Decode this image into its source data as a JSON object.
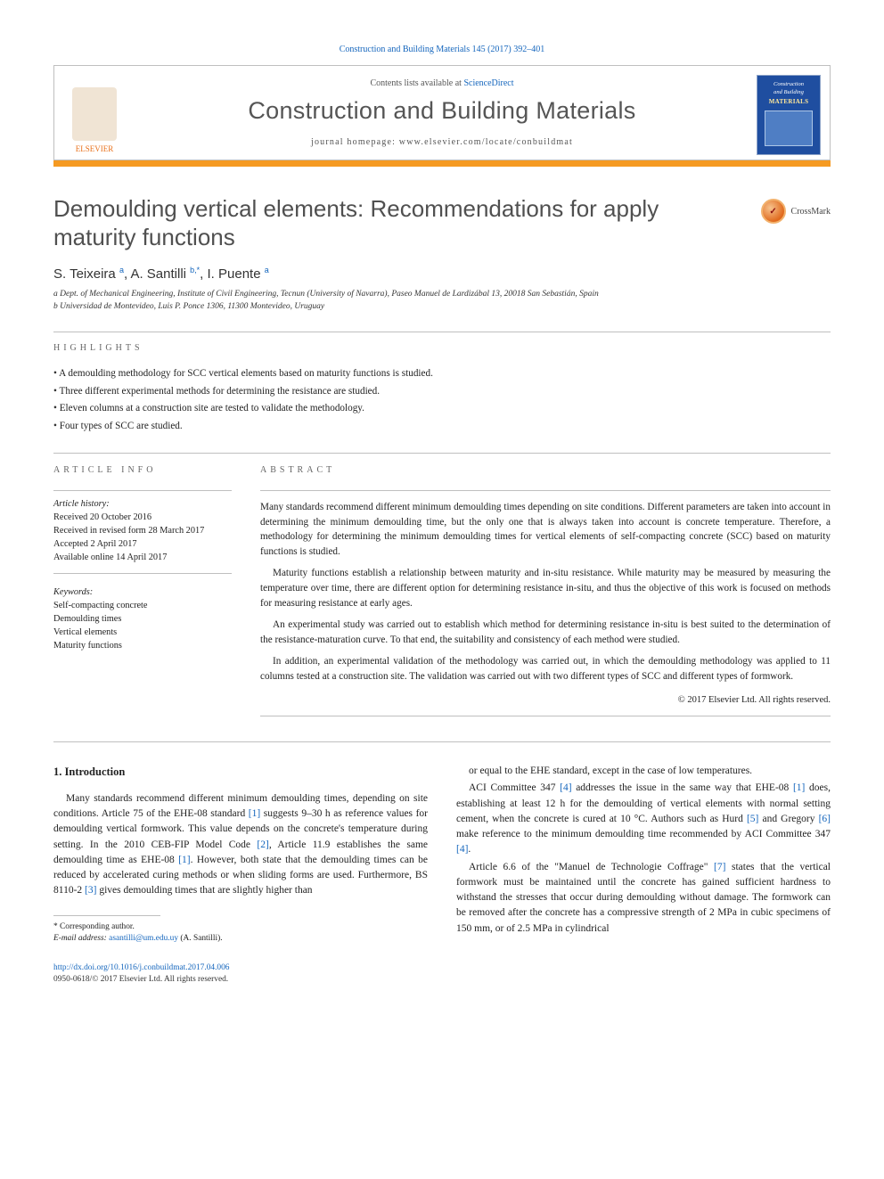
{
  "citation": "Construction and Building Materials 145 (2017) 392–401",
  "header": {
    "contents_prefix": "Contents lists available at ",
    "contents_link": "ScienceDirect",
    "journal_name": "Construction and Building Materials",
    "homepage": "journal homepage: www.elsevier.com/locate/conbuildmat",
    "publisher_name": "ELSEVIER",
    "cover_line1": "Construction",
    "cover_line2": "and Building",
    "cover_line3": "MATERIALS"
  },
  "title": "Demoulding vertical elements: Recommendations for apply maturity functions",
  "crossmark_label": "CrossMark",
  "authors_html": "S. Teixeira <sup>a</sup>, A. Santilli <sup>b,*</sup>, I. Puente <sup>a</sup>",
  "affiliations": {
    "a": "a Dept. of Mechanical Engineering, Institute of Civil Engineering, Tecnun (University of Navarra), Paseo Manuel de Lardizábal 13, 20018 San Sebastián, Spain",
    "b": "b Universidad de Montevideo, Luis P. Ponce 1306, 11300 Montevideo, Uruguay"
  },
  "highlights": {
    "label": "HIGHLIGHTS",
    "items": [
      "A demoulding methodology for SCC vertical elements based on maturity functions is studied.",
      "Three different experimental methods for determining the resistance are studied.",
      "Eleven columns at a construction site are tested to validate the methodology.",
      "Four types of SCC are studied."
    ]
  },
  "article_info": {
    "label": "ARTICLE INFO",
    "history_title": "Article history:",
    "received": "Received 20 October 2016",
    "revised": "Received in revised form 28 March 2017",
    "accepted": "Accepted 2 April 2017",
    "online": "Available online 14 April 2017",
    "keywords_title": "Keywords:",
    "keywords": [
      "Self-compacting concrete",
      "Demoulding times",
      "Vertical elements",
      "Maturity functions"
    ]
  },
  "abstract": {
    "label": "ABSTRACT",
    "paragraphs": [
      "Many standards recommend different minimum demoulding times depending on site conditions. Different parameters are taken into account in determining the minimum demoulding time, but the only one that is always taken into account is concrete temperature. Therefore, a methodology for determining the minimum demoulding times for vertical elements of self-compacting concrete (SCC) based on maturity functions is studied.",
      "Maturity functions establish a relationship between maturity and in-situ resistance. While maturity may be measured by measuring the temperature over time, there are different option for determining resistance in-situ, and thus the objective of this work is focused on methods for measuring resistance at early ages.",
      "An experimental study was carried out to establish which method for determining resistance in-situ is best suited to the determination of the resistance-maturation curve. To that end, the suitability and consistency of each method were studied.",
      "In addition, an experimental validation of the methodology was carried out, in which the demoulding methodology was applied to 11 columns tested at a construction site. The validation was carried out with two different types of SCC and different types of formwork."
    ],
    "copyright": "© 2017 Elsevier Ltd. All rights reserved."
  },
  "intro_heading": "1. Introduction",
  "body_left": "Many standards recommend different minimum demoulding times, depending on site conditions. Article 75 of the EHE-08 standard [1] suggests 9–30 h as reference values for demoulding vertical formwork. This value depends on the concrete's temperature during setting. In the 2010 CEB-FIP Model Code [2], Article 11.9 establishes the same demoulding time as EHE-08 [1]. However, both state that the demoulding times can be reduced by accelerated curing methods or when sliding forms are used. Furthermore, BS 8110-2 [3] gives demoulding times that are slightly higher than",
  "body_right_p1": "or equal to the EHE standard, except in the case of low temperatures.",
  "body_right_p2": "ACI Committee 347 [4] addresses the issue in the same way that EHE-08 [1] does, establishing at least 12 h for the demoulding of vertical elements with normal setting cement, when the concrete is cured at 10 °C. Authors such as Hurd [5] and Gregory [6] make reference to the minimum demoulding time recommended by ACI Committee 347 [4].",
  "body_right_p3": "Article 6.6 of the \"Manuel de Technologie Coffrage\" [7] states that the vertical formwork must be maintained until the concrete has gained sufficient hardness to withstand the stresses that occur during demoulding without damage. The formwork can be removed after the concrete has a compressive strength of 2 MPa in cubic specimens of 150 mm, or of 2.5 MPa in cylindrical",
  "footnote": {
    "corr": "* Corresponding author.",
    "email_label": "E-mail address: ",
    "email": "asantilli@um.edu.uy",
    "email_suffix": " (A. Santilli)."
  },
  "doi": {
    "link": "http://dx.doi.org/10.1016/j.conbuildmat.2017.04.006",
    "issn": "0950-0618/© 2017 Elsevier Ltd. All rights reserved."
  },
  "ref_numbers": [
    "[1]",
    "[2]",
    "[3]",
    "[4]",
    "[5]",
    "[6]",
    "[7]"
  ],
  "colors": {
    "link": "#1566bd",
    "orange_bar": "#f59a22",
    "title_grey": "#505050",
    "rule": "#bfbfbf"
  }
}
